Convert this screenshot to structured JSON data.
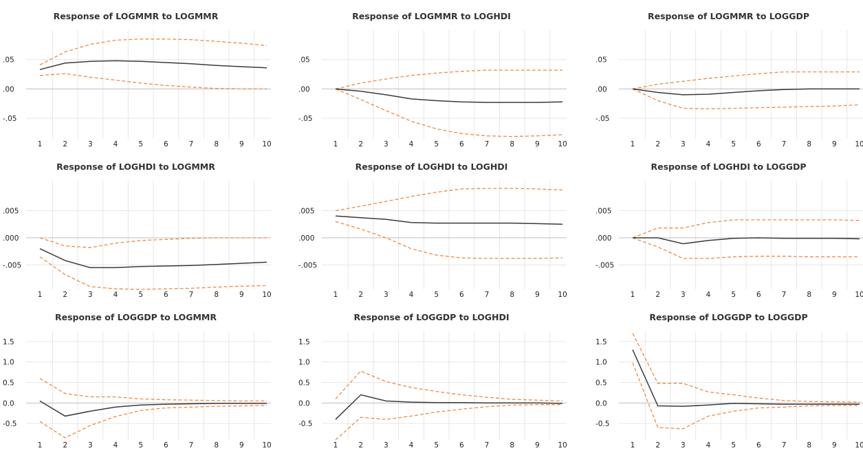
{
  "colors": {
    "response": "#3a3a3a",
    "band": "#ef8a3f",
    "grid": "#e6e6e6",
    "zero_line": "#bdbdbd"
  },
  "chart_data": [
    {
      "type": "line",
      "title": "Response of LOGMMR to LOGMMR",
      "x": [
        1,
        2,
        3,
        4,
        5,
        6,
        7,
        8,
        9,
        10
      ],
      "ylim": [
        -0.085,
        0.1
      ],
      "y_ticks": [
        0.05,
        0.0,
        -0.05
      ],
      "y_tick_labels": [
        ".05",
        ".00",
        "-.05"
      ],
      "response": [
        0.033,
        0.044,
        0.047,
        0.048,
        0.047,
        0.045,
        0.043,
        0.04,
        0.038,
        0.036
      ],
      "upper": [
        0.041,
        0.063,
        0.076,
        0.083,
        0.085,
        0.085,
        0.084,
        0.081,
        0.078,
        0.074
      ],
      "lower": [
        0.023,
        0.026,
        0.02,
        0.015,
        0.01,
        0.006,
        0.003,
        0.001,
        0.0,
        0.0
      ]
    },
    {
      "type": "line",
      "title": "Response of LOGMMR to LOGHDI",
      "x": [
        1,
        2,
        3,
        4,
        5,
        6,
        7,
        8,
        9,
        10
      ],
      "ylim": [
        -0.085,
        0.1
      ],
      "y_ticks": [
        0.05,
        0.0,
        -0.05
      ],
      "y_tick_labels": [
        ".05",
        ".00",
        "-.05"
      ],
      "response": [
        0.0,
        -0.004,
        -0.01,
        -0.017,
        -0.02,
        -0.022,
        -0.023,
        -0.023,
        -0.023,
        -0.022
      ],
      "upper": [
        0.0,
        0.01,
        0.017,
        0.023,
        0.027,
        0.03,
        0.032,
        0.032,
        0.032,
        0.032
      ],
      "lower": [
        0.0,
        -0.018,
        -0.037,
        -0.055,
        -0.068,
        -0.076,
        -0.08,
        -0.081,
        -0.08,
        -0.078
      ]
    },
    {
      "type": "line",
      "title": "Response of LOGMMR to LOGGDP",
      "x": [
        1,
        2,
        3,
        4,
        5,
        6,
        7,
        8,
        9,
        10
      ],
      "ylim": [
        -0.085,
        0.1
      ],
      "y_ticks": [
        0.05,
        0.0,
        -0.05
      ],
      "y_tick_labels": [
        ".05",
        ".00",
        "-.05"
      ],
      "response": [
        0.0,
        -0.006,
        -0.01,
        -0.009,
        -0.006,
        -0.003,
        -0.001,
        0.0,
        0.0,
        0.0
      ],
      "upper": [
        0.0,
        0.008,
        0.013,
        0.018,
        0.022,
        0.026,
        0.029,
        0.029,
        0.029,
        0.029
      ],
      "lower": [
        0.0,
        -0.02,
        -0.033,
        -0.034,
        -0.033,
        -0.032,
        -0.031,
        -0.03,
        -0.029,
        -0.027
      ]
    },
    {
      "type": "line",
      "title": "Response of LOGHDI to LOGMMR",
      "x": [
        1,
        2,
        3,
        4,
        5,
        6,
        7,
        8,
        9,
        10
      ],
      "ylim": [
        -0.0095,
        0.0105
      ],
      "y_ticks": [
        0.005,
        0.0,
        -0.005
      ],
      "y_tick_labels": [
        ".005",
        ".000",
        "-.005"
      ],
      "response": [
        -0.002,
        -0.0042,
        -0.0055,
        -0.0055,
        -0.0053,
        -0.0052,
        -0.0051,
        -0.0049,
        -0.0047,
        -0.0045
      ],
      "upper": [
        0.0,
        -0.0015,
        -0.0018,
        -0.001,
        -0.0005,
        -0.0003,
        -0.0001,
        0.0,
        0.0,
        0.0
      ],
      "lower": [
        -0.0035,
        -0.0068,
        -0.009,
        -0.0094,
        -0.0095,
        -0.0094,
        -0.0093,
        -0.0091,
        -0.0089,
        -0.0088
      ]
    },
    {
      "type": "line",
      "title": "Response of LOGHDI to LOGHDI",
      "x": [
        1,
        2,
        3,
        4,
        5,
        6,
        7,
        8,
        9,
        10
      ],
      "ylim": [
        -0.0095,
        0.0105
      ],
      "y_ticks": [
        0.005,
        0.0,
        -0.005
      ],
      "y_tick_labels": [
        ".005",
        ".000",
        "-.005"
      ],
      "response": [
        0.004,
        0.0037,
        0.0034,
        0.0028,
        0.0027,
        0.0027,
        0.0027,
        0.0027,
        0.0026,
        0.0025
      ],
      "upper": [
        0.005,
        0.0058,
        0.0067,
        0.0076,
        0.0084,
        0.009,
        0.0091,
        0.0091,
        0.009,
        0.0088
      ],
      "lower": [
        0.003,
        0.0016,
        0.0,
        -0.002,
        -0.0032,
        -0.0037,
        -0.0038,
        -0.0038,
        -0.0038,
        -0.0037
      ]
    },
    {
      "type": "line",
      "title": "Response of LOGHDI to LOGGDP",
      "x": [
        1,
        2,
        3,
        4,
        5,
        6,
        7,
        8,
        9,
        10
      ],
      "ylim": [
        -0.0095,
        0.0105
      ],
      "y_ticks": [
        0.005,
        0.0,
        -0.005
      ],
      "y_tick_labels": [
        ".005",
        ".000",
        "-.005"
      ],
      "response": [
        0.0,
        0.0,
        -0.0011,
        -0.0005,
        -0.0001,
        0.0,
        -0.0001,
        -0.0001,
        -0.0001,
        -0.0002
      ],
      "upper": [
        0.0,
        0.0018,
        0.0018,
        0.0028,
        0.0033,
        0.0033,
        0.0033,
        0.0033,
        0.0033,
        0.0032
      ],
      "lower": [
        0.0,
        -0.0017,
        -0.0038,
        -0.0038,
        -0.0035,
        -0.0034,
        -0.0034,
        -0.0035,
        -0.0035,
        -0.0035
      ]
    },
    {
      "type": "line",
      "title": "Response of LOGGDP to LOGMMR",
      "x": [
        1,
        2,
        3,
        4,
        5,
        6,
        7,
        8,
        9,
        10
      ],
      "ylim": [
        -0.9,
        1.75
      ],
      "y_ticks": [
        1.5,
        1.0,
        0.5,
        0.0,
        -0.5
      ],
      "y_tick_labels": [
        "1.5",
        "1.0",
        "0.5",
        "0.0",
        "-0.5"
      ],
      "response": [
        0.05,
        -0.32,
        -0.2,
        -0.1,
        -0.05,
        -0.03,
        -0.02,
        -0.01,
        -0.01,
        -0.01
      ],
      "upper": [
        0.6,
        0.23,
        0.15,
        0.15,
        0.1,
        0.08,
        0.07,
        0.06,
        0.05,
        0.05
      ],
      "lower": [
        -0.45,
        -0.85,
        -0.55,
        -0.33,
        -0.18,
        -0.12,
        -0.1,
        -0.08,
        -0.07,
        -0.06
      ]
    },
    {
      "type": "line",
      "title": "Response of LOGGDP to LOGHDI",
      "x": [
        1,
        2,
        3,
        4,
        5,
        6,
        7,
        8,
        9,
        10
      ],
      "ylim": [
        -0.9,
        1.75
      ],
      "y_ticks": [
        1.5,
        1.0,
        0.5,
        0.0,
        -0.5
      ],
      "y_tick_labels": [
        "1.5",
        "1.0",
        "0.5",
        "0.0",
        "-0.5"
      ],
      "response": [
        -0.4,
        0.2,
        0.05,
        0.02,
        0.01,
        0.01,
        0.0,
        0.0,
        0.0,
        -0.01
      ],
      "upper": [
        0.1,
        0.78,
        0.52,
        0.38,
        0.28,
        0.2,
        0.14,
        0.09,
        0.07,
        0.05
      ],
      "lower": [
        -0.9,
        -0.35,
        -0.4,
        -0.32,
        -0.22,
        -0.15,
        -0.09,
        -0.05,
        -0.04,
        -0.04
      ]
    },
    {
      "type": "line",
      "title": "Response of LOGGDP to LOGGDP",
      "x": [
        1,
        2,
        3,
        4,
        5,
        6,
        7,
        8,
        9,
        10
      ],
      "ylim": [
        -0.9,
        1.75
      ],
      "y_ticks": [
        1.5,
        1.0,
        0.5,
        0.0,
        -0.5
      ],
      "y_tick_labels": [
        "1.5",
        "1.0",
        "0.5",
        "0.0",
        "-0.5"
      ],
      "response": [
        1.3,
        -0.07,
        -0.08,
        -0.05,
        -0.01,
        -0.02,
        -0.03,
        -0.03,
        -0.03,
        -0.03
      ],
      "upper": [
        1.7,
        0.48,
        0.48,
        0.27,
        0.2,
        0.12,
        0.06,
        0.04,
        0.03,
        0.02
      ],
      "lower": [
        0.98,
        -0.6,
        -0.63,
        -0.32,
        -0.2,
        -0.12,
        -0.1,
        -0.07,
        -0.06,
        -0.06
      ]
    }
  ]
}
